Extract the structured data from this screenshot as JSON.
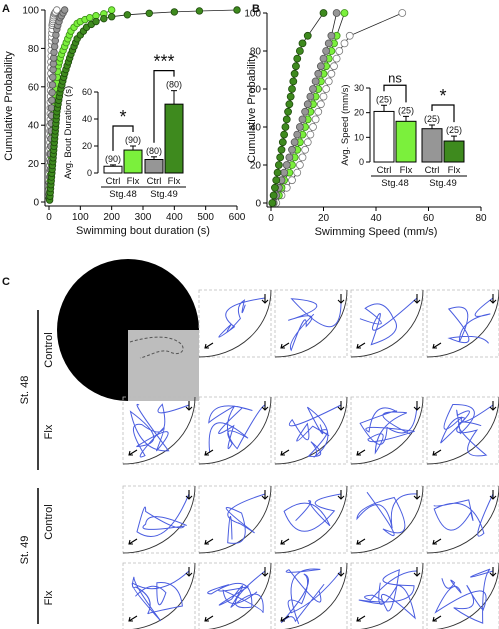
{
  "panels": {
    "a": "A",
    "b": "B",
    "c": "C"
  },
  "chart_data": [
    {
      "id": "A",
      "type": "scatter",
      "title": "",
      "xlabel": "Swimming bout duration (s)",
      "ylabel": "Cumulative Probability",
      "xlim": [
        0,
        600
      ],
      "ylim": [
        0,
        100
      ],
      "x_ticks": [
        "0",
        "100",
        "200",
        "300",
        "400",
        "500",
        "600"
      ],
      "y_ticks": [
        "0",
        "20",
        "40",
        "60",
        "80",
        "100"
      ],
      "grid": false,
      "series": [
        {
          "color": "#ffffff",
          "stroke": "#777777",
          "x": [
            1,
            1,
            1,
            1,
            2,
            2,
            2,
            2,
            2,
            3,
            3,
            3,
            3,
            3,
            4,
            4,
            4,
            4,
            5,
            5,
            5,
            5,
            6,
            6,
            6,
            7,
            7,
            8,
            8,
            9,
            9,
            10,
            10,
            11,
            12,
            13,
            14,
            15,
            17,
            19,
            21,
            25
          ],
          "y": [
            2,
            4,
            7,
            10,
            13,
            16,
            19,
            22,
            25,
            28,
            31,
            34,
            37,
            40,
            43,
            46,
            49,
            52,
            55,
            58,
            61,
            64,
            67,
            70,
            73,
            76,
            79,
            82,
            84,
            86,
            88,
            90,
            92,
            93,
            94,
            95,
            96,
            97,
            98,
            98.5,
            99,
            100
          ]
        },
        {
          "color": "#7bf03c",
          "stroke": "#3e8f1a",
          "x": [
            1,
            2,
            3,
            4,
            5,
            6,
            7,
            8,
            9,
            10,
            11,
            12,
            13,
            14,
            15,
            16,
            17,
            18,
            20,
            22,
            24,
            26,
            28,
            30,
            33,
            36,
            40,
            45,
            50,
            55,
            60,
            65,
            70,
            80,
            90,
            100,
            115,
            130,
            150,
            175,
            200
          ],
          "y": [
            2,
            5,
            8,
            11,
            14,
            17,
            20,
            23,
            26,
            29,
            32,
            35,
            38,
            41,
            44,
            47,
            50,
            53,
            56,
            59,
            62,
            65,
            68,
            71,
            73,
            75,
            77,
            79,
            81,
            83,
            85,
            87,
            89,
            91,
            93,
            94,
            95,
            96,
            97,
            98,
            100
          ]
        },
        {
          "color": "#969696",
          "stroke": "#555555",
          "x": [
            2,
            3,
            3,
            4,
            4,
            5,
            5,
            6,
            6,
            7,
            7,
            8,
            8,
            9,
            10,
            11,
            12,
            13,
            14,
            15,
            16,
            18,
            20,
            22,
            25,
            28,
            32,
            36,
            40,
            45,
            50
          ],
          "y": [
            2,
            5,
            9,
            13,
            17,
            21,
            25,
            29,
            33,
            37,
            41,
            45,
            49,
            53,
            57,
            61,
            65,
            69,
            72,
            75,
            78,
            81,
            84,
            87,
            90,
            92,
            94,
            96,
            97,
            98.5,
            100
          ]
        },
        {
          "color": "#3e8a1e",
          "stroke": "#1e4a0c",
          "x": [
            2,
            3,
            4,
            5,
            6,
            7,
            8,
            9,
            10,
            11,
            12,
            13,
            14,
            15,
            16,
            17,
            18,
            19,
            20,
            21,
            22,
            23,
            24,
            25,
            27,
            29,
            31,
            33,
            35,
            38,
            41,
            44,
            47,
            50,
            54,
            58,
            62,
            66,
            70,
            75,
            80,
            85,
            90,
            100,
            110,
            120,
            135,
            150,
            175,
            200,
            250,
            320,
            400,
            480,
            600
          ],
          "y": [
            1,
            3,
            5,
            7,
            9,
            11,
            13,
            15,
            17,
            19,
            21,
            23,
            25,
            27,
            29,
            31,
            33,
            35,
            37,
            39,
            41,
            43,
            45,
            47,
            49,
            51,
            53,
            55,
            57,
            59,
            61,
            63,
            65,
            67,
            69,
            71,
            73,
            75,
            77,
            79,
            81,
            83,
            85,
            87,
            89,
            91,
            92.5,
            94,
            95.5,
            96.5,
            97.5,
            98.3,
            99,
            99.5,
            100
          ]
        }
      ]
    },
    {
      "id": "A-inset",
      "type": "bar",
      "ylabel": "Avg. Bout Duration (s)",
      "ylim": [
        0,
        60
      ],
      "y_ticks": [
        "0",
        "20",
        "40",
        "60"
      ],
      "categories": [
        "Ctrl",
        "Flx",
        "Ctrl",
        "Flx"
      ],
      "groups": [
        "Stg.48",
        "Stg.49"
      ],
      "values": [
        5,
        17,
        10,
        51
      ],
      "errors": [
        1,
        3,
        2,
        10
      ],
      "n_labels": [
        "(90)",
        "(90)",
        "(80)",
        "(80)"
      ],
      "colors": [
        "#ffffff",
        "#7bf03c",
        "#969696",
        "#3e8a1e"
      ],
      "significance": [
        "*",
        "***"
      ]
    },
    {
      "id": "B",
      "type": "scatter",
      "title": "",
      "xlabel": "Swimming Speed (mm/s)",
      "ylabel": "Cumulative Probability",
      "xlim": [
        0,
        80
      ],
      "ylim": [
        0,
        100
      ],
      "x_ticks": [
        "0",
        "20",
        "40",
        "60",
        "80"
      ],
      "y_ticks": [
        "0",
        "20",
        "40",
        "60",
        "80",
        "100"
      ],
      "grid": false,
      "series": [
        {
          "color": "#ffffff",
          "stroke": "#777777",
          "x": [
            2,
            4,
            6,
            8,
            10,
            11,
            12,
            13,
            14,
            15,
            16,
            17,
            18,
            19,
            20,
            21,
            22,
            23,
            24,
            25,
            26,
            28,
            30,
            50
          ],
          "y": [
            0,
            4,
            8,
            12,
            16,
            20,
            24,
            28,
            32,
            36,
            40,
            44,
            48,
            52,
            56,
            60,
            64,
            68,
            72,
            76,
            80,
            84,
            88,
            100
          ]
        },
        {
          "color": "#7bf03c",
          "stroke": "#3e8f1a",
          "x": [
            1,
            3,
            4,
            5,
            7,
            8,
            9,
            10,
            11,
            12,
            13,
            14,
            15,
            16,
            17,
            18,
            19,
            20,
            21,
            22,
            23,
            24,
            25,
            28
          ],
          "y": [
            0,
            4,
            8,
            12,
            16,
            20,
            24,
            28,
            32,
            36,
            40,
            44,
            48,
            52,
            56,
            60,
            64,
            68,
            72,
            76,
            80,
            84,
            88,
            100
          ]
        },
        {
          "color": "#969696",
          "stroke": "#555555",
          "x": [
            1,
            2,
            3,
            4,
            5,
            6,
            7,
            8,
            9,
            10,
            11,
            12,
            13,
            14,
            15,
            16,
            17,
            18,
            19,
            20,
            21,
            22,
            23,
            25
          ],
          "y": [
            0,
            4,
            8,
            12,
            16,
            20,
            24,
            28,
            32,
            36,
            40,
            44,
            48,
            52,
            56,
            60,
            64,
            68,
            72,
            76,
            80,
            84,
            88,
            100
          ]
        },
        {
          "color": "#3e8a1e",
          "stroke": "#1e4a0c",
          "x": [
            0.5,
            1,
            1.5,
            2,
            2.5,
            3,
            3.5,
            4,
            4.5,
            5,
            5.5,
            6,
            6.5,
            7,
            7.5,
            8,
            8.5,
            9,
            9.5,
            10,
            11,
            12,
            14,
            20
          ],
          "y": [
            0,
            4,
            8,
            12,
            16,
            20,
            24,
            28,
            32,
            36,
            40,
            44,
            48,
            52,
            56,
            60,
            64,
            68,
            72,
            76,
            80,
            84,
            88,
            100
          ]
        }
      ]
    },
    {
      "id": "B-inset",
      "type": "bar",
      "ylabel": "Avg. Speed (mm/s)",
      "ylim": [
        0,
        30
      ],
      "y_ticks": [
        "0",
        "10",
        "20",
        "30"
      ],
      "categories": [
        "Ctrl",
        "Flx",
        "Ctrl",
        "Flx"
      ],
      "groups": [
        "Stg.48",
        "Stg.49"
      ],
      "values": [
        20.5,
        16.5,
        13.5,
        8.5
      ],
      "errors": [
        2.5,
        2,
        1.5,
        2
      ],
      "n_labels": [
        "(25)",
        "(25)",
        "(25)",
        "(25)"
      ],
      "colors": [
        "#ffffff",
        "#7bf03c",
        "#969696",
        "#3e8a1e"
      ],
      "significance": [
        "ns",
        "*"
      ]
    }
  ],
  "panel_c": {
    "rows": [
      {
        "stage": "St. 48",
        "condition": "Control"
      },
      {
        "stage": "St. 48",
        "condition": "Flx"
      },
      {
        "stage": "St. 49",
        "condition": "Control"
      },
      {
        "stage": "St. 49",
        "condition": "Flx"
      }
    ],
    "trace_color": "#4a5de0"
  }
}
